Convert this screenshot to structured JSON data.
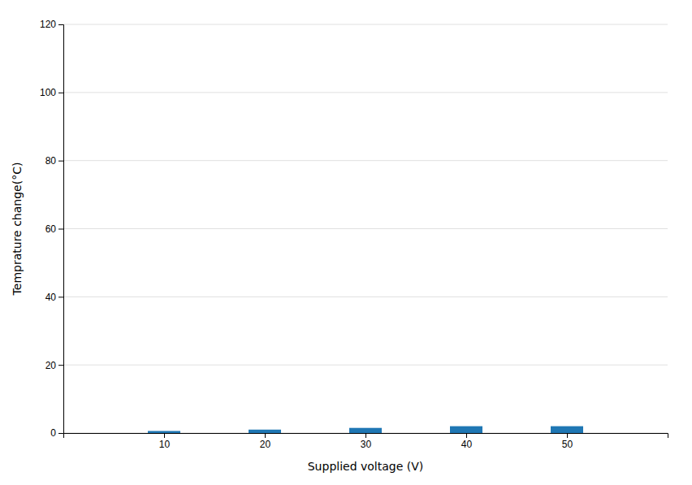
{
  "chart_data": {
    "type": "bar",
    "x": [
      10,
      20,
      30,
      40,
      50
    ],
    "values": [
      0.6,
      1.0,
      1.5,
      2.0,
      2.0
    ],
    "xlabel": "Supplied voltage (V)",
    "ylabel": "Temprature change(°C)",
    "xlim": [
      0,
      60
    ],
    "xticks": [
      10,
      20,
      30,
      40,
      50
    ],
    "ylim": [
      0,
      120
    ],
    "yticks": [
      0,
      20,
      40,
      60,
      80,
      100,
      120
    ],
    "grid": true
  }
}
